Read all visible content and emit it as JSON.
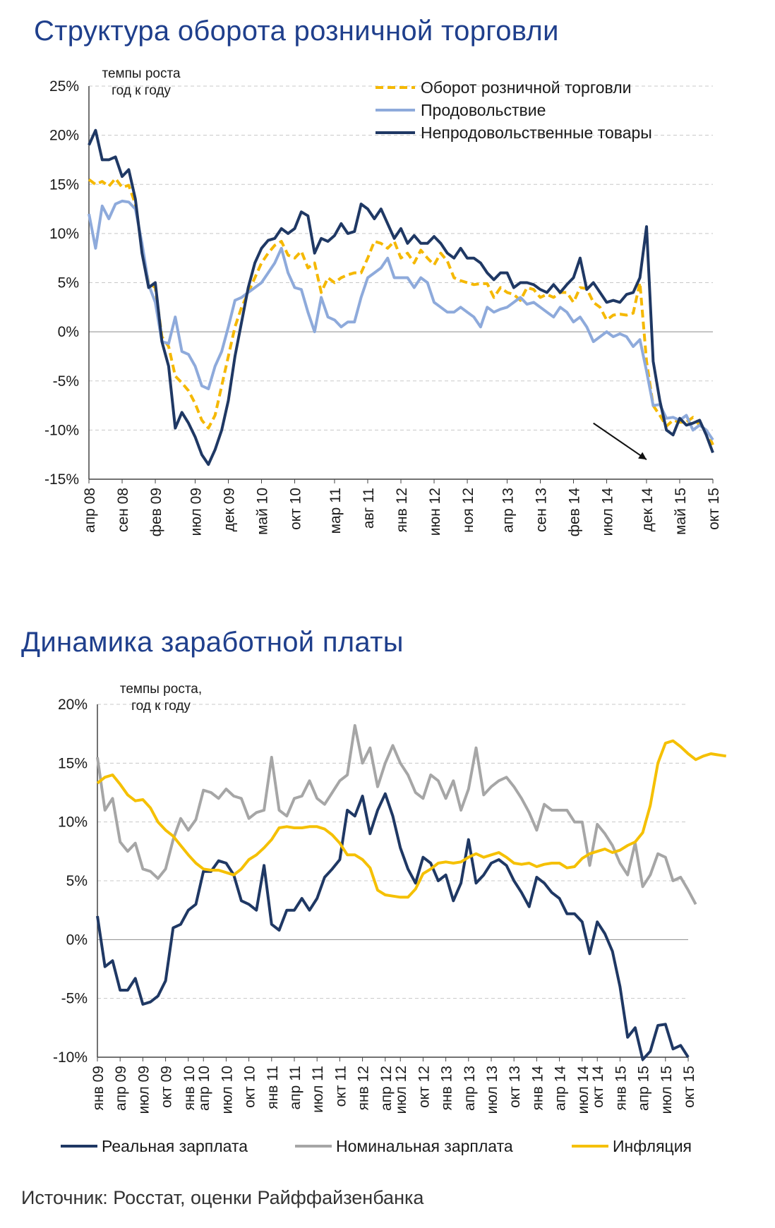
{
  "chart_data": [
    {
      "type": "line",
      "title": "Структура оборота розничной торговли",
      "note": [
        "темпы роста",
        "год к году"
      ],
      "ylim": [
        -15,
        25
      ],
      "yticks": [
        -15,
        -10,
        -5,
        0,
        5,
        10,
        15,
        20,
        25
      ],
      "ytick_labels": [
        "-15%",
        "-10%",
        "-5%",
        "0%",
        "5%",
        "10%",
        "15%",
        "20%",
        "25%"
      ],
      "xtick_labels": [
        "апр 08",
        "сен 08",
        "фев 09",
        "июл 09",
        "дек 09",
        "май 10",
        "окт 10",
        "мар 11",
        "авг 11",
        "янв 12",
        "июн 12",
        "ноя 12",
        "апр 13",
        "сен 13",
        "фев 14",
        "июл 14",
        "дек 14",
        "май 15",
        "окт 15"
      ],
      "x_start": "апр 08",
      "grid": true,
      "legend_position": "top-right",
      "annotation": "downward arrow near end of series",
      "series": [
        {
          "name": "Оборот розничной торговли",
          "color": "#f5b800",
          "style": "dashed",
          "values": [
            15.5,
            15.0,
            15.3,
            14.8,
            15.6,
            14.7,
            14.9,
            13.0,
            8.5,
            5.0,
            4.5,
            -0.5,
            -1.5,
            -4.5,
            -5.2,
            -6.0,
            -7.3,
            -9.0,
            -9.8,
            -8.5,
            -5.5,
            -2.5,
            0.5,
            2.5,
            4.0,
            5.5,
            7.0,
            8.0,
            8.8,
            9.2,
            7.8,
            7.5,
            8.2,
            6.5,
            7.0,
            4.0,
            5.5,
            5.0,
            5.5,
            5.8,
            6.0,
            6.0,
            7.5,
            9.2,
            9.0,
            8.5,
            9.2,
            7.5,
            8.0,
            7.0,
            8.3,
            7.5,
            6.8,
            8.0,
            7.2,
            5.5,
            5.2,
            5.0,
            4.8,
            4.9,
            4.9,
            3.5,
            4.5,
            4.0,
            3.8,
            3.2,
            4.5,
            4.3,
            3.5,
            3.8,
            3.5,
            4.0,
            4.0,
            3.0,
            4.5,
            4.4,
            3.0,
            2.5,
            1.2,
            1.7,
            1.8,
            1.7,
            1.9,
            5.0,
            -3.0,
            -7.5,
            -8.5,
            -9.6,
            -9.0,
            -9.2,
            -9.2,
            -8.7,
            -9.5,
            -10.0,
            -11.5
          ]
        },
        {
          "name": "Продовольствие",
          "color": "#8eaadb",
          "style": "solid",
          "values": [
            12.0,
            8.5,
            12.8,
            11.5,
            13.0,
            13.3,
            13.2,
            12.5,
            9.0,
            4.8,
            3.0,
            -1.0,
            -1.2,
            1.5,
            -2.0,
            -2.3,
            -3.5,
            -5.5,
            -5.8,
            -3.5,
            -2.0,
            0.5,
            3.2,
            3.5,
            4.0,
            4.5,
            5.0,
            6.0,
            7.0,
            8.5,
            6.0,
            4.5,
            4.3,
            2.0,
            0.0,
            3.5,
            1.5,
            1.2,
            0.5,
            1.0,
            1.0,
            3.5,
            5.5,
            6.0,
            6.5,
            7.5,
            5.5,
            5.5,
            5.5,
            4.5,
            5.5,
            5.0,
            3.0,
            2.5,
            2.0,
            2.0,
            2.5,
            2.0,
            1.5,
            0.5,
            2.5,
            2.0,
            2.3,
            2.5,
            3.0,
            3.5,
            2.8,
            3.0,
            2.5,
            2.0,
            1.5,
            2.5,
            2.0,
            1.0,
            1.5,
            0.5,
            -1.0,
            -0.5,
            0.0,
            -0.5,
            -0.2,
            -0.5,
            -1.5,
            -0.8,
            -4.0,
            -7.5,
            -7.4,
            -8.8,
            -8.7,
            -9.0,
            -8.5,
            -10.0,
            -9.5,
            -10.0,
            -11.0
          ]
        },
        {
          "name": "Непродовольственные товары",
          "color": "#1f3864",
          "style": "solid",
          "values": [
            19.0,
            20.5,
            17.5,
            17.5,
            17.8,
            15.8,
            16.5,
            13.5,
            8.0,
            4.5,
            5.0,
            -1.0,
            -3.5,
            -9.8,
            -8.2,
            -9.3,
            -10.7,
            -12.5,
            -13.5,
            -12.0,
            -10.0,
            -7.0,
            -2.5,
            1.0,
            4.5,
            7.0,
            8.5,
            9.3,
            9.5,
            10.5,
            10.0,
            10.5,
            12.2,
            11.8,
            8.0,
            9.5,
            9.2,
            9.8,
            11.0,
            10.0,
            10.2,
            13.0,
            12.5,
            11.5,
            12.5,
            11.0,
            9.5,
            10.5,
            9.0,
            9.8,
            9.0,
            9.0,
            9.7,
            9.0,
            8.0,
            7.5,
            8.5,
            7.5,
            7.5,
            7.0,
            6.0,
            5.3,
            6.0,
            6.0,
            4.5,
            5.0,
            5.0,
            4.8,
            4.3,
            4.0,
            4.8,
            4.0,
            4.8,
            5.5,
            7.5,
            4.3,
            5.0,
            4.0,
            3.0,
            3.2,
            3.0,
            3.8,
            4.0,
            5.5,
            10.7,
            -3.0,
            -7.0,
            -10.0,
            -10.5,
            -8.8,
            -9.5,
            -9.3,
            -9.0,
            -10.5,
            -12.3
          ]
        }
      ]
    },
    {
      "type": "line",
      "title": "Динамика заработной платы",
      "note": [
        "темпы роста,",
        "год к году"
      ],
      "ylim": [
        -10,
        20
      ],
      "yticks": [
        -10,
        -5,
        0,
        5,
        10,
        15,
        20
      ],
      "ytick_labels": [
        "-10%",
        "-5%",
        "0%",
        "5%",
        "10%",
        "15%",
        "20%"
      ],
      "xtick_labels": [
        "янв 09",
        "апр 09",
        "июл 09",
        "окт 09",
        "янв 10",
        "апр 10",
        "июл 10",
        "окт 10",
        "янв 11",
        "апр 11",
        "июл 11",
        "окт 11",
        "янв 12",
        "апр 12",
        "июл 12",
        "окт 12",
        "янв 13",
        "апр 13",
        "июл 13",
        "окт 13",
        "янв 14",
        "апр 14",
        "июл 14",
        "окт 14",
        "янв 15",
        "апр 15",
        "июл 15",
        "окт 15"
      ],
      "x_start": "янв 09",
      "grid": true,
      "legend_position": "bottom",
      "series": [
        {
          "name": "Реальная зарплата",
          "color": "#1f3864",
          "values": [
            2.0,
            -2.3,
            -1.8,
            -4.3,
            -4.3,
            -3.3,
            -5.5,
            -5.3,
            -4.8,
            -3.5,
            1.0,
            1.3,
            2.5,
            3.0,
            5.8,
            5.8,
            6.7,
            6.5,
            5.5,
            3.3,
            3.0,
            2.5,
            6.3,
            1.3,
            0.8,
            2.5,
            2.5,
            3.5,
            2.5,
            3.5,
            5.3,
            6.0,
            6.8,
            11.0,
            10.5,
            12.2,
            9.0,
            11.0,
            12.4,
            10.5,
            7.8,
            6.0,
            4.8,
            7.0,
            6.5,
            5.0,
            5.5,
            3.3,
            4.8,
            8.5,
            4.8,
            5.5,
            6.5,
            6.8,
            6.3,
            5.0,
            4.0,
            2.8,
            5.3,
            4.8,
            4.0,
            3.5,
            2.2,
            2.2,
            1.5,
            -1.2,
            1.5,
            0.5,
            -1.0,
            -4.0,
            -8.3,
            -7.5,
            -10.2,
            -9.5,
            -7.3,
            -7.2,
            -9.3,
            -9.0,
            -10.0
          ]
        },
        {
          "name": "Номинальная зарплата",
          "color": "#a6a6a6",
          "values": [
            15.5,
            11.0,
            12.0,
            8.3,
            7.5,
            8.2,
            6.0,
            5.8,
            5.2,
            6.0,
            8.5,
            10.3,
            9.3,
            10.2,
            12.7,
            12.5,
            12.0,
            12.8,
            12.2,
            12.0,
            10.3,
            10.8,
            11.0,
            15.5,
            11.0,
            10.5,
            12.0,
            12.2,
            13.5,
            12.0,
            11.5,
            12.5,
            13.5,
            14.0,
            18.2,
            15.0,
            16.3,
            13.0,
            15.0,
            16.5,
            15.0,
            14.0,
            12.5,
            12.0,
            14.0,
            13.5,
            12.0,
            13.5,
            11.0,
            12.8,
            16.3,
            12.3,
            13.0,
            13.5,
            13.8,
            13.0,
            12.0,
            10.8,
            9.3,
            11.5,
            11.0,
            11.0,
            11.0,
            10.0,
            10.0,
            6.3,
            9.8,
            9.0,
            8.0,
            6.5,
            5.5,
            8.2,
            4.5,
            5.5,
            7.3,
            7.0,
            5.0,
            5.3,
            4.2,
            3.0
          ]
        },
        {
          "name": "Инфляция",
          "color": "#f5c000",
          "values": [
            13.3,
            13.8,
            14.0,
            13.2,
            12.3,
            11.8,
            11.9,
            11.2,
            10.0,
            9.3,
            8.8,
            8.0,
            7.2,
            6.5,
            6.0,
            5.9,
            5.9,
            5.7,
            5.5,
            6.0,
            6.8,
            7.2,
            7.8,
            8.5,
            9.5,
            9.6,
            9.5,
            9.5,
            9.6,
            9.6,
            9.4,
            8.9,
            8.2,
            7.2,
            7.2,
            6.8,
            6.1,
            4.2,
            3.8,
            3.7,
            3.6,
            3.6,
            4.3,
            5.6,
            6.0,
            6.5,
            6.6,
            6.5,
            6.6,
            7.0,
            7.3,
            7.0,
            7.2,
            7.4,
            7.0,
            6.5,
            6.4,
            6.5,
            6.2,
            6.4,
            6.5,
            6.5,
            6.1,
            6.2,
            6.9,
            7.3,
            7.5,
            7.7,
            7.4,
            7.6,
            8.0,
            8.3,
            9.1,
            11.4,
            15.0,
            16.7,
            16.9,
            16.4,
            15.8,
            15.3,
            15.6,
            15.8,
            15.7,
            15.6
          ]
        }
      ]
    }
  ],
  "legend2": [
    "Реальная зарплата",
    "Номинальная зарплата",
    "Инфляция"
  ],
  "source": "Источник: Росстат, оценки Райффайзенбанка"
}
